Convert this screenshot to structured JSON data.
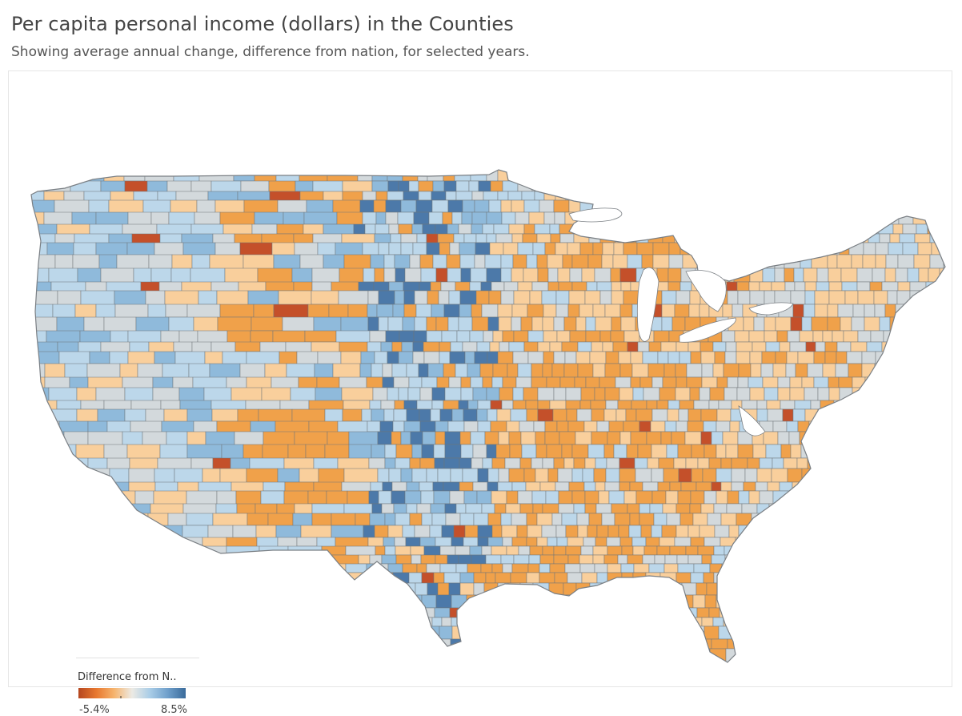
{
  "title": "Per capita personal income (dollars) in the Counties",
  "subtitle": "Showing average annual change, difference from nation,  for selected years.",
  "map": {
    "region": "United States (contiguous) counties",
    "measure": "Difference from nation in average annual change of per capita personal income",
    "colors": {
      "strong_negative": "#c4502a",
      "negative": "#f0a14a",
      "mild_negative": "#f9cf9c",
      "neutral": "#d3d9dc",
      "mild_positive": "#bcd7ea",
      "positive": "#8fbadb",
      "strong_positive": "#4c79a9",
      "county_border": "#6f7479",
      "water": "#ffffff"
    }
  },
  "legend": {
    "title": "Difference from N..",
    "min_label": "-5.4%",
    "max_label": "8.5%",
    "min_value": -5.4,
    "max_value": 8.5,
    "ramp_colors": [
      "#b5461f",
      "#e8782f",
      "#f6b46e",
      "#eceae4",
      "#a9cde7",
      "#6f9fcb",
      "#3a6b9b"
    ]
  }
}
